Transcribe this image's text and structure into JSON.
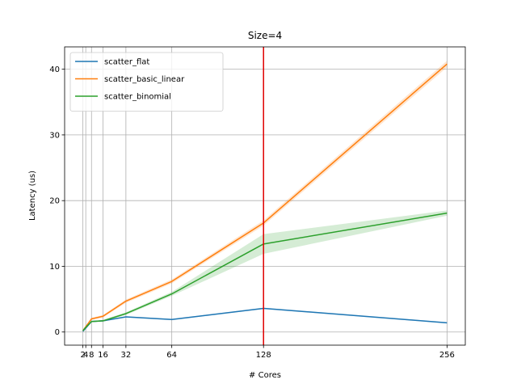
{
  "chart_data": {
    "type": "line",
    "title": "Size=4",
    "xlabel": "# Cores",
    "ylabel": "Latency (us)",
    "xlim": [
      -10.75,
      268.75
    ],
    "ylim": [
      -2.0,
      43.4
    ],
    "x_ticks": [
      2,
      4,
      8,
      16,
      32,
      64,
      128,
      256
    ],
    "x_tick_labels": [
      "2",
      "4",
      "8",
      "16",
      "32",
      "64",
      "128",
      "256"
    ],
    "y_ticks": [
      0,
      10,
      20,
      30,
      40
    ],
    "y_tick_labels": [
      "0",
      "10",
      "20",
      "30",
      "40"
    ],
    "grid": true,
    "legend_position": "top-left",
    "vline": {
      "x": 128,
      "color": "#e00000"
    },
    "series": [
      {
        "name": "scatter_flat",
        "color": "#1f77b4",
        "x": [
          2,
          4,
          8,
          16,
          32,
          64,
          128,
          256
        ],
        "y": [
          0.1,
          0.6,
          1.6,
          1.7,
          2.3,
          1.9,
          3.6,
          1.4
        ],
        "band": [
          0.1,
          0.1,
          0.1,
          0.1,
          0.1,
          0.1,
          0.1,
          0.1
        ]
      },
      {
        "name": "scatter_basic_linear",
        "color": "#ff7f0e",
        "x": [
          2,
          4,
          8,
          16,
          32,
          64,
          128,
          256
        ],
        "y": [
          0.2,
          0.8,
          2.0,
          2.4,
          4.7,
          7.7,
          16.6,
          40.8
        ],
        "band": [
          0.1,
          0.1,
          0.15,
          0.2,
          0.25,
          0.3,
          0.4,
          0.5
        ]
      },
      {
        "name": "scatter_binomial",
        "color": "#2ca02c",
        "x": [
          2,
          4,
          8,
          16,
          32,
          64,
          128,
          256
        ],
        "y": [
          0.2,
          0.7,
          1.6,
          1.7,
          2.8,
          5.8,
          13.4,
          18.1
        ],
        "band": [
          0.1,
          0.1,
          0.1,
          0.15,
          0.2,
          0.3,
          1.5,
          0.4
        ]
      }
    ]
  }
}
